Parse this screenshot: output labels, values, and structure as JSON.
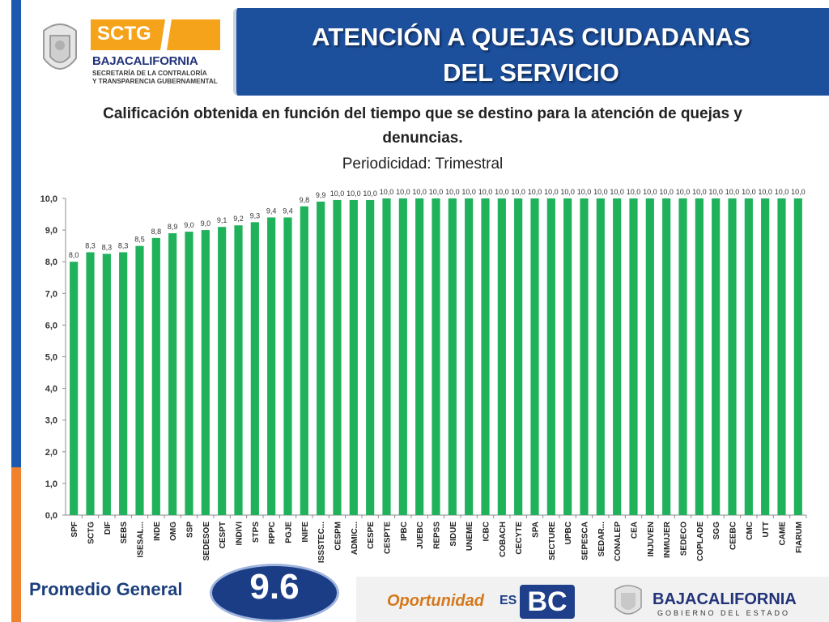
{
  "header": {
    "title_line1": "ATENCIÓN A QUEJAS CIUDADANAS",
    "title_line2": "DEL SERVICIO"
  },
  "logo": {
    "sctg": "SCTG",
    "baja": "BAJA",
    "california": "CALIFORNIA",
    "sub1": "SECRETARÍA DE LA CONTRALORÍA",
    "sub2": "Y TRANSPARENCIA GUBERNAMENTAL",
    "brand_orange": "#f5a31a",
    "brand_blue": "#22337a"
  },
  "subtitle_line1": "Calificación obtenida en función del tiempo que se destino para la atención de quejas y",
  "subtitle_line2": "denuncias.",
  "periodicidad": "Periodicidad: Trimestral",
  "chart_data": {
    "type": "bar",
    "categories": [
      "SPF",
      "SCTG",
      "DIF",
      "SEBS",
      "ISESAL...",
      "INDE",
      "OMG",
      "SSP",
      "SEDESOE",
      "CESPT",
      "INDIVI",
      "STPS",
      "RPPC",
      "PGJE",
      "INIFE",
      "ISSSTEC...",
      "CESPM",
      "ADMIC...",
      "CESPE",
      "CESPTE",
      "IPBC",
      "JUEBC",
      "REPSS",
      "SIDUE",
      "UNEME",
      "ICBC",
      "COBACH",
      "CECYTE",
      "SPA",
      "SECTURE",
      "UPBC",
      "SEPESCA",
      "SEDAR...",
      "CONALEP",
      "CEA",
      "INJUVEN",
      "INMUJER",
      "SEDECO",
      "COPLADE",
      "SGG",
      "CEEBC",
      "CMC",
      "UTT",
      "CAME",
      "FIARUM"
    ],
    "values": [
      8.0,
      8.3,
      8.25,
      8.3,
      8.5,
      8.75,
      8.9,
      8.95,
      9.0,
      9.1,
      9.15,
      9.25,
      9.4,
      9.4,
      9.75,
      9.9,
      9.95,
      9.95,
      9.95,
      10.0,
      10.0,
      10.0,
      10.0,
      10.0,
      10.0,
      10.0,
      10.0,
      10.0,
      10.0,
      10.0,
      10.0,
      10.0,
      10.0,
      10.0,
      10.0,
      10.0,
      10.0,
      10.0,
      10.0,
      10.0,
      10.0,
      10.0,
      10.0,
      10.0,
      10.0
    ],
    "labels": [
      "8,0",
      "8,3",
      "8,3",
      "8,3",
      "8,5",
      "8,8",
      "8,9",
      "9,0",
      "9,0",
      "9,1",
      "9,2",
      "9,3",
      "9,4",
      "9,4",
      "9,8",
      "9,9",
      "10,0",
      "10,0",
      "10,0",
      "10,0",
      "10,0",
      "10,0",
      "10,0",
      "10,0",
      "10,0",
      "10,0",
      "10,0",
      "10,0",
      "10,0",
      "10,0",
      "10,0",
      "10,0",
      "10,0",
      "10,0",
      "10,0",
      "10,0",
      "10,0",
      "10,0",
      "10,0",
      "10,0",
      "10,0",
      "10,0",
      "10,0",
      "10,0",
      "10,0"
    ],
    "y_ticks": [
      "0,0",
      "1,0",
      "2,0",
      "3,0",
      "4,0",
      "5,0",
      "6,0",
      "7,0",
      "8,0",
      "9,0",
      "10,0"
    ],
    "ylim": [
      0,
      10
    ],
    "bar_color": "#1fb25a",
    "grid": false
  },
  "footer": {
    "promedio_label": "Promedio General",
    "promedio_value": "9.6",
    "oportunidad": "Oportunidad",
    "es": "ES",
    "bc": "BC",
    "baja2": "BAJACALIFORNIA",
    "gobierno": "GOBIERNO DEL ESTADO"
  }
}
